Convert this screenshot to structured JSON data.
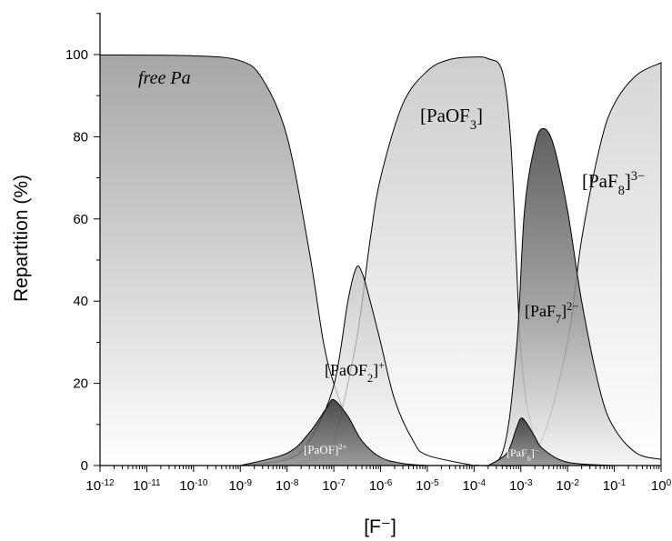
{
  "chart_data": {
    "type": "area",
    "xlabel": "[F⁻]",
    "ylabel": "Repartition (%)",
    "xscale": "log",
    "xlim": [
      1e-12,
      1
    ],
    "ylim": [
      0,
      100
    ],
    "x_tick_labels": [
      {
        "base": "10",
        "exp": "-12"
      },
      {
        "base": "10",
        "exp": "-11"
      },
      {
        "base": "10",
        "exp": "-10"
      },
      {
        "base": "10",
        "exp": "-9"
      },
      {
        "base": "10",
        "exp": "-8"
      },
      {
        "base": "10",
        "exp": "-7"
      },
      {
        "base": "10",
        "exp": "-6"
      },
      {
        "base": "10",
        "exp": "-5"
      },
      {
        "base": "10",
        "exp": "-4"
      },
      {
        "base": "10",
        "exp": "-3"
      },
      {
        "base": "10",
        "exp": "-2"
      },
      {
        "base": "10",
        "exp": "-1"
      },
      {
        "base": "10",
        "exp": "0"
      }
    ],
    "y_tick_labels": [
      "0",
      "20",
      "40",
      "60",
      "80",
      "100"
    ],
    "series": [
      {
        "name": "free Pa",
        "label": {
          "parts": [
            {
              "t": "free Pa",
              "s": "normal"
            }
          ],
          "italic": true
        },
        "shade": "dark",
        "points": [
          [
            1e-12,
            99.9
          ],
          [
            1e-10,
            99.7
          ],
          [
            1e-09,
            98.5
          ],
          [
            3e-09,
            94
          ],
          [
            1e-08,
            80
          ],
          [
            3e-08,
            52
          ],
          [
            6e-08,
            30
          ],
          [
            1e-07,
            20
          ],
          [
            2e-07,
            11
          ],
          [
            4e-07,
            5
          ],
          [
            1e-06,
            1.8
          ],
          [
            3e-06,
            0.5
          ],
          [
            1e-05,
            0.2
          ],
          [
            0.0001,
            0
          ]
        ]
      },
      {
        "name": "[PaOF]2+",
        "label": {
          "parts": [
            {
              "t": "[PaOF]",
              "s": "normal"
            },
            {
              "t": "2+",
              "s": "sup"
            }
          ],
          "light": true
        },
        "shade": "dark",
        "points": [
          [
            1e-09,
            0
          ],
          [
            1e-08,
            3
          ],
          [
            3e-08,
            8
          ],
          [
            7e-08,
            14
          ],
          [
            1e-07,
            16
          ],
          [
            2e-07,
            12
          ],
          [
            4e-07,
            6
          ],
          [
            1e-06,
            2
          ],
          [
            3e-06,
            0.5
          ],
          [
            1e-05,
            0
          ]
        ]
      },
      {
        "name": "[PaOF2]+",
        "label": {
          "parts": [
            {
              "t": "[PaOF",
              "s": "normal"
            },
            {
              "t": "2",
              "s": "sub"
            },
            {
              "t": "]",
              "s": "normal"
            },
            {
              "t": "+",
              "s": "sup"
            }
          ]
        },
        "shade": "light",
        "points": [
          [
            1e-09,
            0
          ],
          [
            1e-08,
            1.5
          ],
          [
            3e-08,
            6
          ],
          [
            1e-07,
            19.5
          ],
          [
            2e-07,
            40
          ],
          [
            3e-07,
            48
          ],
          [
            4e-07,
            47
          ],
          [
            6e-07,
            40
          ],
          [
            1e-06,
            30
          ],
          [
            2e-06,
            16
          ],
          [
            5e-06,
            6
          ],
          [
            1e-05,
            2.5
          ],
          [
            0.0001,
            0
          ]
        ]
      },
      {
        "name": "[PaOF3]",
        "label": {
          "parts": [
            {
              "t": "[PaOF",
              "s": "normal"
            },
            {
              "t": "3",
              "s": "sub"
            },
            {
              "t": "]",
              "s": "normal"
            }
          ]
        },
        "shade": "light",
        "points": [
          [
            1e-08,
            0
          ],
          [
            5e-08,
            2
          ],
          [
            1e-07,
            6
          ],
          [
            3e-07,
            30
          ],
          [
            6e-07,
            55
          ],
          [
            1e-06,
            70
          ],
          [
            3e-06,
            88
          ],
          [
            1e-05,
            96
          ],
          [
            3e-05,
            98.8
          ],
          [
            0.0001,
            99.4
          ],
          [
            0.0002,
            99
          ],
          [
            0.0004,
            96
          ],
          [
            0.0006,
            80
          ],
          [
            0.0008,
            50
          ],
          [
            0.001,
            28
          ],
          [
            0.0015,
            12
          ],
          [
            0.003,
            3
          ],
          [
            0.01,
            0.5
          ],
          [
            0.1,
            0
          ]
        ]
      },
      {
        "name": "[PaF6]-",
        "label": {
          "parts": [
            {
              "t": "[PaF",
              "s": "normal"
            },
            {
              "t": "6",
              "s": "sub"
            },
            {
              "t": "]",
              "s": "normal"
            },
            {
              "t": "−",
              "s": "sup"
            }
          ],
          "light": true
        },
        "shade": "dark",
        "points": [
          [
            0.0002,
            0
          ],
          [
            0.0005,
            3
          ],
          [
            0.0008,
            9
          ],
          [
            0.001,
            11.5
          ],
          [
            0.0013,
            10.5
          ],
          [
            0.002,
            7
          ],
          [
            0.003,
            4
          ],
          [
            0.01,
            0.8
          ],
          [
            0.1,
            0
          ]
        ]
      },
      {
        "name": "[PaF7]2-",
        "label": {
          "parts": [
            {
              "t": "[PaF",
              "s": "normal"
            },
            {
              "t": "7",
              "s": "sub"
            },
            {
              "t": "]",
              "s": "normal"
            },
            {
              "t": "2−",
              "s": "sup"
            }
          ]
        },
        "shade": "dark",
        "points": [
          [
            0.0001,
            0
          ],
          [
            0.0004,
            3
          ],
          [
            0.0008,
            28
          ],
          [
            0.0012,
            62
          ],
          [
            0.002,
            78
          ],
          [
            0.003,
            82
          ],
          [
            0.005,
            78
          ],
          [
            0.01,
            62
          ],
          [
            0.02,
            40
          ],
          [
            0.05,
            18
          ],
          [
            0.1,
            9
          ],
          [
            0.3,
            3
          ],
          [
            1,
            1.5
          ]
        ]
      },
      {
        "name": "[PaF8]3-",
        "label": {
          "parts": [
            {
              "t": "[PaF",
              "s": "normal"
            },
            {
              "t": "8",
              "s": "sub"
            },
            {
              "t": "]",
              "s": "normal"
            },
            {
              "t": "3−",
              "s": "sup"
            }
          ]
        },
        "shade": "light",
        "points": [
          [
            0.0003,
            0
          ],
          [
            0.001,
            0.6
          ],
          [
            0.003,
            7
          ],
          [
            0.01,
            30
          ],
          [
            0.02,
            55
          ],
          [
            0.05,
            78
          ],
          [
            0.1,
            88
          ],
          [
            0.3,
            95
          ],
          [
            1,
            98
          ]
        ]
      }
    ]
  }
}
